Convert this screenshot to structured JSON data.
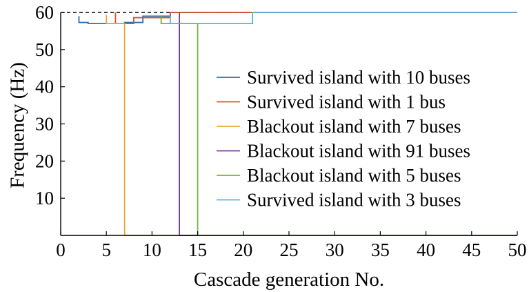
{
  "chart_data": {
    "type": "line",
    "step": true,
    "xlabel": "Cascade generation No.",
    "ylabel": "Frequency (Hz)",
    "xlim": [
      0,
      50
    ],
    "ylim": [
      0,
      60
    ],
    "xticks": [
      0,
      5,
      10,
      15,
      20,
      25,
      30,
      35,
      40,
      45,
      50
    ],
    "yticks": [
      10,
      20,
      30,
      40,
      50,
      60
    ],
    "ytick_labels_shown": [
      10,
      20,
      30,
      40,
      50,
      60
    ],
    "reference_line": {
      "y": 60,
      "style": "dashed",
      "color": "#000000"
    },
    "grid": false,
    "legend_position": "right",
    "series": [
      {
        "name": "Survived island with 10 buses",
        "color": "#2a6fb0",
        "points": [
          [
            2,
            59.0
          ],
          [
            2,
            57.3
          ],
          [
            3,
            57.3
          ],
          [
            3,
            57.0
          ],
          [
            7,
            57.0
          ],
          [
            7,
            57.3
          ],
          [
            9,
            57.3
          ],
          [
            9,
            59.0
          ],
          [
            12,
            59.0
          ],
          [
            12,
            60.0
          ],
          [
            50,
            60.0
          ]
        ]
      },
      {
        "name": "Survived island with 1 bus",
        "color": "#d2562a",
        "points": [
          [
            6,
            60.0
          ],
          [
            6,
            57.0
          ],
          [
            8,
            57.0
          ],
          [
            8,
            58.6
          ],
          [
            12,
            58.6
          ],
          [
            12,
            60.0
          ],
          [
            50,
            60.0
          ]
        ]
      },
      {
        "name": "Blackout island with 7 buses",
        "color": "#e8a93a",
        "points": [
          [
            5,
            59.3
          ],
          [
            5,
            57.0
          ],
          [
            7,
            57.0
          ],
          [
            7,
            0
          ],
          [
            13,
            0
          ]
        ]
      },
      {
        "name": "Blackout island with 91 buses",
        "color": "#7a3a8e",
        "points": [
          [
            13,
            60.0
          ],
          [
            13,
            0
          ],
          [
            15,
            0
          ]
        ]
      },
      {
        "name": "Blackout island with 5 buses",
        "color": "#7ab040",
        "points": [
          [
            11,
            59.0
          ],
          [
            11,
            57.0
          ],
          [
            15,
            57.0
          ],
          [
            15,
            0
          ],
          [
            50,
            0
          ]
        ]
      },
      {
        "name": "Survived island with 3 buses",
        "color": "#5ab4d6",
        "points": [
          [
            12,
            59.0
          ],
          [
            12,
            57.0
          ],
          [
            21,
            57.0
          ],
          [
            21,
            60.0
          ],
          [
            50,
            60.0
          ]
        ]
      }
    ]
  }
}
